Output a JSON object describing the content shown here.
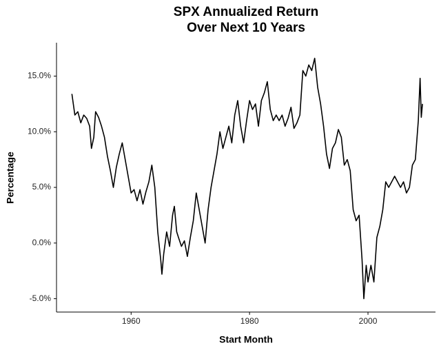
{
  "chart_data": {
    "type": "line",
    "title": [
      "SPX Annualized Return",
      "Over Next 10 Years"
    ],
    "x_label": "Start Month",
    "y_label": "Percentage",
    "xlim": [
      1947.4,
      2011.4
    ],
    "xticks": [
      1960,
      1980,
      2000
    ],
    "ylim": [
      -6.2,
      18
    ],
    "yticks": [
      {
        "value": -5,
        "label": "-5.0%"
      },
      {
        "value": 0,
        "label": "0.0%"
      },
      {
        "value": 5,
        "label": "5.0%"
      },
      {
        "value": 10,
        "label": "10.0%"
      },
      {
        "value": 15,
        "label": "15.0%"
      }
    ],
    "grid": false,
    "series": [
      {
        "color": "#000000",
        "x": [
          1950.0,
          1950.5,
          1951.0,
          1951.5,
          1952.0,
          1952.5,
          1953.0,
          1953.3,
          1953.7,
          1954.0,
          1954.5,
          1955.0,
          1955.5,
          1956.0,
          1956.5,
          1957.0,
          1957.5,
          1958.0,
          1958.5,
          1959.0,
          1959.5,
          1960.0,
          1960.5,
          1961.0,
          1961.5,
          1962.0,
          1962.5,
          1963.0,
          1963.5,
          1964.0,
          1964.5,
          1965.0,
          1965.2,
          1965.5,
          1966.0,
          1966.5,
          1967.0,
          1967.3,
          1967.7,
          1968.0,
          1968.5,
          1969.0,
          1969.5,
          1970.0,
          1970.5,
          1971.0,
          1971.5,
          1972.0,
          1972.5,
          1973.0,
          1973.5,
          1974.0,
          1974.5,
          1975.0,
          1975.5,
          1976.0,
          1976.5,
          1977.0,
          1977.5,
          1978.0,
          1978.5,
          1979.0,
          1979.5,
          1980.0,
          1980.5,
          1981.0,
          1981.5,
          1982.0,
          1982.5,
          1983.0,
          1983.5,
          1984.0,
          1984.5,
          1985.0,
          1985.5,
          1986.0,
          1986.5,
          1987.0,
          1987.5,
          1988.0,
          1988.5,
          1989.0,
          1989.5,
          1990.0,
          1990.5,
          1991.0,
          1991.5,
          1992.0,
          1992.5,
          1993.0,
          1993.5,
          1994.0,
          1994.5,
          1995.0,
          1995.5,
          1996.0,
          1996.5,
          1997.0,
          1997.5,
          1998.0,
          1998.5,
          1999.0,
          1999.3,
          1999.7,
          2000.0,
          2000.5,
          2001.0,
          2001.5,
          2002.0,
          2002.5,
          2003.0,
          2003.5,
          2004.0,
          2004.5,
          2005.0,
          2005.5,
          2006.0,
          2006.5,
          2007.0,
          2007.5,
          2008.0,
          2008.5,
          2008.8,
          2009.0,
          2009.2
        ],
        "values": [
          13.4,
          11.5,
          11.8,
          10.8,
          11.5,
          11.2,
          10.5,
          8.5,
          9.5,
          11.8,
          11.3,
          10.5,
          9.5,
          7.8,
          6.5,
          5.0,
          6.8,
          8.0,
          9.0,
          7.5,
          6.0,
          4.5,
          4.8,
          3.8,
          4.8,
          3.5,
          4.6,
          5.5,
          7.0,
          5.0,
          1.0,
          -1.5,
          -2.8,
          -1.0,
          1.0,
          -0.3,
          2.5,
          3.3,
          1.0,
          0.5,
          -0.3,
          0.2,
          -1.2,
          0.5,
          2.0,
          4.5,
          3.0,
          1.5,
          0.0,
          3.0,
          5.0,
          6.5,
          8.0,
          10.0,
          8.5,
          9.5,
          10.5,
          9.0,
          11.5,
          12.8,
          10.5,
          9.0,
          11.0,
          12.8,
          12.0,
          12.5,
          10.5,
          12.8,
          13.5,
          14.5,
          12.0,
          11.0,
          11.5,
          11.0,
          11.5,
          10.5,
          11.2,
          12.2,
          10.3,
          10.8,
          11.5,
          15.5,
          15.0,
          16.0,
          15.5,
          16.6,
          14.0,
          12.5,
          10.5,
          8.0,
          6.7,
          8.5,
          9.0,
          10.2,
          9.5,
          7.0,
          7.5,
          6.5,
          3.0,
          2.0,
          2.5,
          -1.5,
          -5.0,
          -2.0,
          -3.5,
          -2.0,
          -3.5,
          0.5,
          1.5,
          3.0,
          5.5,
          5.0,
          5.5,
          6.0,
          5.5,
          5.0,
          5.5,
          4.5,
          5.0,
          7.0,
          7.5,
          11.0,
          14.8,
          11.3,
          12.5
        ]
      }
    ]
  }
}
